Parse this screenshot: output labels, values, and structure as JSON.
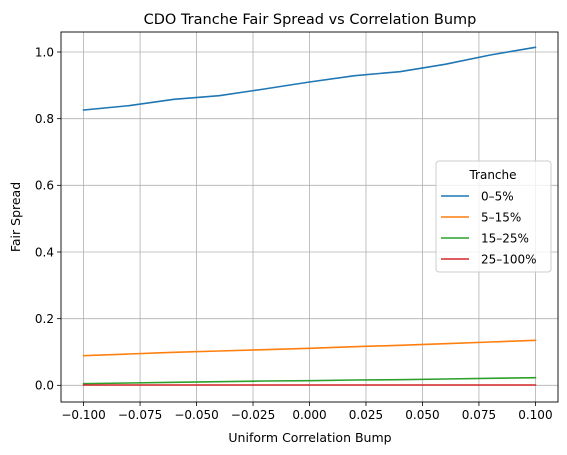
{
  "chart_data": {
    "type": "line",
    "title": "CDO Tranche Fair Spread vs Correlation Bump",
    "xlabel": "Uniform Correlation Bump",
    "ylabel": "Fair Spread",
    "xlim": [
      -0.11,
      0.11
    ],
    "ylim": [
      -0.05,
      1.06
    ],
    "grid": true,
    "legend_title": "Tranche",
    "legend_position": "center-right",
    "x": [
      -0.1,
      -0.08,
      -0.06,
      -0.04,
      -0.02,
      0.0,
      0.02,
      0.04,
      0.06,
      0.08,
      0.1
    ],
    "series": [
      {
        "name": "0–5%",
        "color": "#1f77b4",
        "values": [
          0.826,
          0.839,
          0.858,
          0.869,
          0.889,
          0.91,
          0.929,
          0.941,
          0.963,
          0.991,
          1.014
        ]
      },
      {
        "name": "5–15%",
        "color": "#ff7f0e",
        "values": [
          0.089,
          0.094,
          0.099,
          0.103,
          0.107,
          0.111,
          0.116,
          0.12,
          0.125,
          0.13,
          0.135
        ]
      },
      {
        "name": "15–25%",
        "color": "#2ca02c",
        "values": [
          0.005,
          0.007,
          0.009,
          0.011,
          0.013,
          0.014,
          0.016,
          0.017,
          0.019,
          0.021,
          0.023
        ]
      },
      {
        "name": "25–100%",
        "color": "#d62728",
        "values": [
          0.001,
          0.001,
          0.001,
          0.001,
          0.001,
          0.001,
          0.001,
          0.001,
          0.001,
          0.001,
          0.001
        ]
      }
    ],
    "xticks": [
      {
        "value": -0.1,
        "label": "−0.100"
      },
      {
        "value": -0.075,
        "label": "−0.075"
      },
      {
        "value": -0.05,
        "label": "−0.050"
      },
      {
        "value": -0.025,
        "label": "−0.025"
      },
      {
        "value": 0.0,
        "label": "0.000"
      },
      {
        "value": 0.025,
        "label": "0.025"
      },
      {
        "value": 0.05,
        "label": "0.050"
      },
      {
        "value": 0.075,
        "label": "0.075"
      },
      {
        "value": 0.1,
        "label": "0.100"
      }
    ],
    "yticks": [
      {
        "value": 0.0,
        "label": "0.0"
      },
      {
        "value": 0.2,
        "label": "0.2"
      },
      {
        "value": 0.4,
        "label": "0.4"
      },
      {
        "value": 0.6,
        "label": "0.6"
      },
      {
        "value": 0.8,
        "label": "0.8"
      },
      {
        "value": 1.0,
        "label": "1.0"
      }
    ]
  }
}
